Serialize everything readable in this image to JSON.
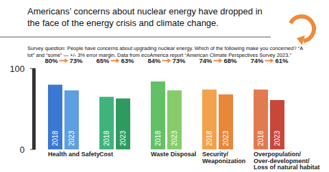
{
  "chart_data": {
    "type": "bar",
    "title": "Americans’ concerns about nuclear energy have dropped in the face of the energy crisis and climate change.",
    "subtitle": "Survey question:  People have concerns about upgrading nuclear energy. Which of the following make you concerned? “A lot” and “some” — +/- 3% error margin. Data from ecoAmerica report “American Climate Perspectives Survey 2023.”",
    "categories": [
      "Health and Safety",
      "Cost",
      "Waste Disposal",
      "Security/ Weaponization",
      "Overpopulation/ Over-development/ Loss of natural habitat"
    ],
    "series": [
      {
        "name": "2018",
        "colors": [
          "#3b78d4",
          "#3fb37b",
          "#63c067",
          "#f2a24c",
          "#e27a4f"
        ],
        "values": [
          80,
          65,
          84,
          74,
          74
        ],
        "value_labels": [
          "80%",
          "65%",
          "84%",
          "74%",
          "74%"
        ]
      },
      {
        "name": "2023",
        "colors": [
          "#5d9fe0",
          "#2f9a5f",
          "#86cc6a",
          "#e8863a",
          "#c9463b"
        ],
        "values": [
          73,
          63,
          73,
          68,
          61
        ],
        "value_labels": [
          "73%",
          "63%",
          "73%",
          "68%",
          "61%"
        ]
      }
    ],
    "ylim": [
      0,
      100
    ],
    "yticks": [
      0,
      100
    ],
    "grid": false,
    "data_labels": true
  }
}
